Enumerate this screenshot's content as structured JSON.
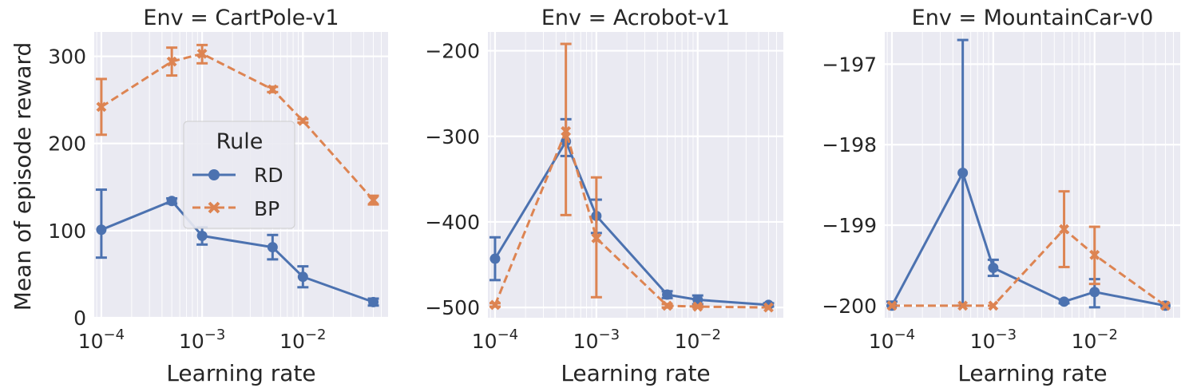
{
  "chart_data": [
    {
      "type": "line",
      "title": "Env = CartPole-v1",
      "xlabel": "Learning rate",
      "ylabel": "Mean of episode reward",
      "xscale": "log",
      "xlim": [
        8.5e-05,
        0.07
      ],
      "ylim": [
        0,
        328
      ],
      "xticks": [
        {
          "v": 0.0001,
          "label": "10",
          "exp": "−4"
        },
        {
          "v": 0.001,
          "label": "10",
          "exp": "−3"
        },
        {
          "v": 0.01,
          "label": "10",
          "exp": "−2"
        }
      ],
      "yticks": [
        {
          "v": 0,
          "label": "0"
        },
        {
          "v": 100,
          "label": "100"
        },
        {
          "v": 200,
          "label": "200"
        },
        {
          "v": 300,
          "label": "300"
        }
      ],
      "x": [
        0.0001,
        0.0005,
        0.001,
        0.005,
        0.01,
        0.05
      ],
      "series": [
        {
          "name": "RD",
          "values": [
            101,
            134,
            94,
            81,
            47,
            18
          ],
          "err_low": [
            69,
            131,
            84,
            67,
            35,
            14
          ],
          "err_high": [
            147,
            137,
            104,
            95,
            59,
            22
          ]
        },
        {
          "name": "BP",
          "values": [
            242,
            294,
            303,
            262,
            226,
            135
          ],
          "err_low": [
            210,
            278,
            292,
            259,
            224,
            130
          ],
          "err_high": [
            274,
            310,
            313,
            265,
            228,
            140
          ]
        }
      ],
      "grid": true,
      "legend": {
        "title": "Rule",
        "position": "center-right",
        "entries": [
          "RD",
          "BP"
        ]
      }
    },
    {
      "type": "line",
      "title": "Env = Acrobot-v1",
      "xlabel": "Learning rate",
      "ylabel": "",
      "xscale": "log",
      "xlim": [
        8.5e-05,
        0.07
      ],
      "ylim": [
        -512,
        -178
      ],
      "xticks": [
        {
          "v": 0.0001,
          "label": "10",
          "exp": "−4"
        },
        {
          "v": 0.001,
          "label": "10",
          "exp": "−3"
        },
        {
          "v": 0.01,
          "label": "10",
          "exp": "−2"
        }
      ],
      "yticks": [
        {
          "v": -500,
          "label": "−500"
        },
        {
          "v": -400,
          "label": "−400"
        },
        {
          "v": -300,
          "label": "−300"
        },
        {
          "v": -200,
          "label": "−200"
        }
      ],
      "x": [
        0.0001,
        0.0005,
        0.001,
        0.005,
        0.01,
        0.05
      ],
      "series": [
        {
          "name": "RD",
          "values": [
            -443,
            -306,
            -393,
            -485,
            -491,
            -497
          ],
          "err_low": [
            -468,
            -323,
            -413,
            -489,
            -496,
            -499
          ],
          "err_high": [
            -418,
            -280,
            -374,
            -481,
            -486,
            -495
          ]
        },
        {
          "name": "BP",
          "values": [
            -497,
            -294,
            -419,
            -498,
            -499,
            -500
          ],
          "err_low": [
            -499,
            -392,
            -488,
            -500,
            -500,
            -500
          ],
          "err_high": [
            -495,
            -192,
            -348,
            -496,
            -498,
            -500
          ]
        }
      ],
      "grid": true
    },
    {
      "type": "line",
      "title": "Env = MountainCar-v0",
      "xlabel": "Learning rate",
      "ylabel": "",
      "xscale": "log",
      "xlim": [
        8.5e-05,
        0.07
      ],
      "ylim": [
        -200.15,
        -196.6
      ],
      "xticks": [
        {
          "v": 0.0001,
          "label": "10",
          "exp": "−4"
        },
        {
          "v": 0.001,
          "label": "10",
          "exp": "−3"
        },
        {
          "v": 0.01,
          "label": "10",
          "exp": "−2"
        }
      ],
      "yticks": [
        {
          "v": -200,
          "label": "−200"
        },
        {
          "v": -199,
          "label": "−199"
        },
        {
          "v": -198,
          "label": "−198"
        },
        {
          "v": -197,
          "label": "−197"
        }
      ],
      "x": [
        0.0001,
        0.0005,
        0.001,
        0.005,
        0.01,
        0.05
      ],
      "series": [
        {
          "name": "RD",
          "values": [
            -200.0,
            -198.35,
            -199.53,
            -199.95,
            -199.83,
            -200.0
          ],
          "err_low": [
            -200.0,
            -200.0,
            -199.63,
            -199.97,
            -200.02,
            -200.0
          ],
          "err_high": [
            -199.95,
            -196.7,
            -199.43,
            -199.93,
            -199.67,
            -200.0
          ]
        },
        {
          "name": "BP",
          "values": [
            -200.0,
            -200.0,
            -200.0,
            -199.05,
            -199.37,
            -200.0
          ],
          "err_low": [
            -200.0,
            -200.0,
            -200.0,
            -199.52,
            -199.73,
            -200.0
          ],
          "err_high": [
            -200.0,
            -200.0,
            -200.0,
            -198.58,
            -199.02,
            -200.0
          ]
        }
      ],
      "grid": true
    }
  ],
  "colors": {
    "RD": "#4c72b0",
    "BP": "#dd8452",
    "panel_bg": "#eaeaf2",
    "grid": "#ffffff",
    "text": "#262626"
  }
}
